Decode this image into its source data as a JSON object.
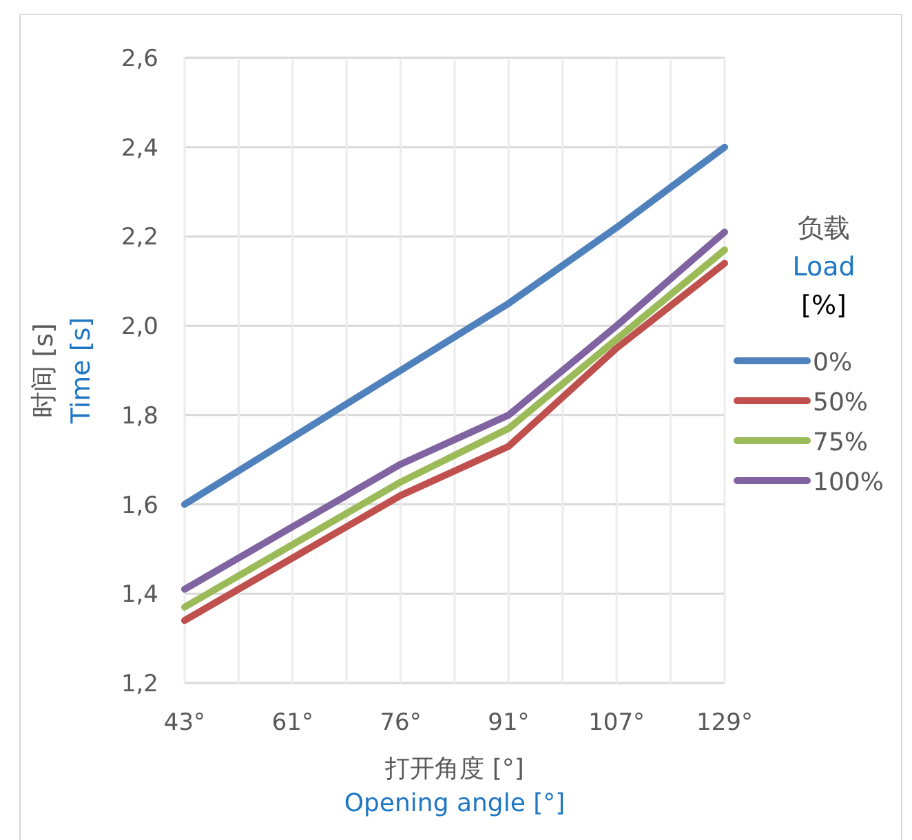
{
  "chart_data": {
    "type": "line",
    "categories": [
      "43°",
      "61°",
      "76°",
      "91°",
      "107°",
      "129°"
    ],
    "series": [
      {
        "name": "0%",
        "color": "#4f81bd",
        "values": [
          1.6,
          1.75,
          1.9,
          2.05,
          2.22,
          2.4
        ]
      },
      {
        "name": "50%",
        "color": "#c0504d",
        "values": [
          1.34,
          1.48,
          1.62,
          1.73,
          1.95,
          2.14
        ]
      },
      {
        "name": "75%",
        "color": "#9bbb59",
        "values": [
          1.37,
          1.51,
          1.65,
          1.77,
          1.97,
          2.17
        ]
      },
      {
        "name": "100%",
        "color": "#8064a2",
        "values": [
          1.41,
          1.55,
          1.69,
          1.8,
          2.0,
          2.21
        ]
      }
    ],
    "xlabel": "打开角度 [°]\nOpening angle [°]",
    "ylabel": "时间 [s]\nTime [s]",
    "legend_title": "负载\nLoad\n[%]",
    "ylim": [
      1.2,
      2.6
    ],
    "yticks": [
      {
        "value": 1.2,
        "label": "1,2"
      },
      {
        "value": 1.4,
        "label": "1,4"
      },
      {
        "value": 1.6,
        "label": "1,6"
      },
      {
        "value": 1.8,
        "label": "1,8"
      },
      {
        "value": 2.0,
        "label": "2,0"
      },
      {
        "value": 2.2,
        "label": "2,2"
      },
      {
        "value": 2.4,
        "label": "2,4"
      },
      {
        "value": 2.6,
        "label": "2,6"
      }
    ],
    "grid": true,
    "legend": "right",
    "marker": "none",
    "line_style": "solid"
  }
}
